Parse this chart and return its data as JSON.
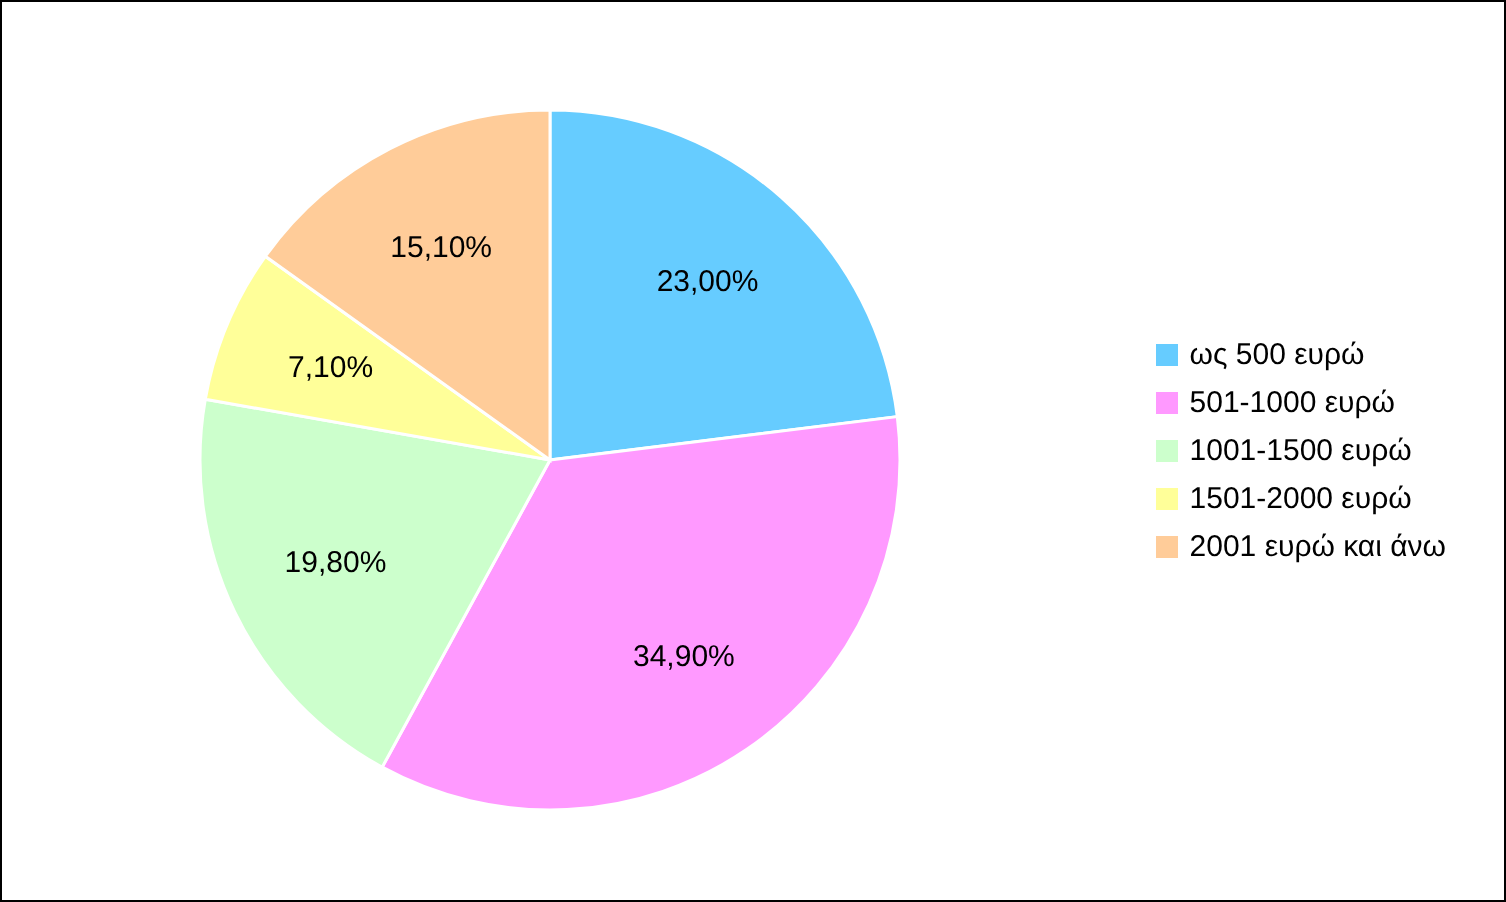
{
  "chart_data": {
    "type": "pie",
    "categories": [
      "ως 500 ευρώ",
      "501-1000 ευρώ",
      "1001-1500 ευρώ",
      "1501-2000 ευρώ",
      "2001 ευρώ και άνω"
    ],
    "values": [
      23.0,
      34.9,
      19.8,
      7.1,
      15.1
    ],
    "value_labels": [
      "23,00%",
      "34,90%",
      "19,80%",
      "7,10%",
      "15,10%"
    ],
    "colors": [
      "#66ccff",
      "#ff99ff",
      "#ccffcc",
      "#ffff99",
      "#ffcc99"
    ],
    "legend": "right"
  }
}
